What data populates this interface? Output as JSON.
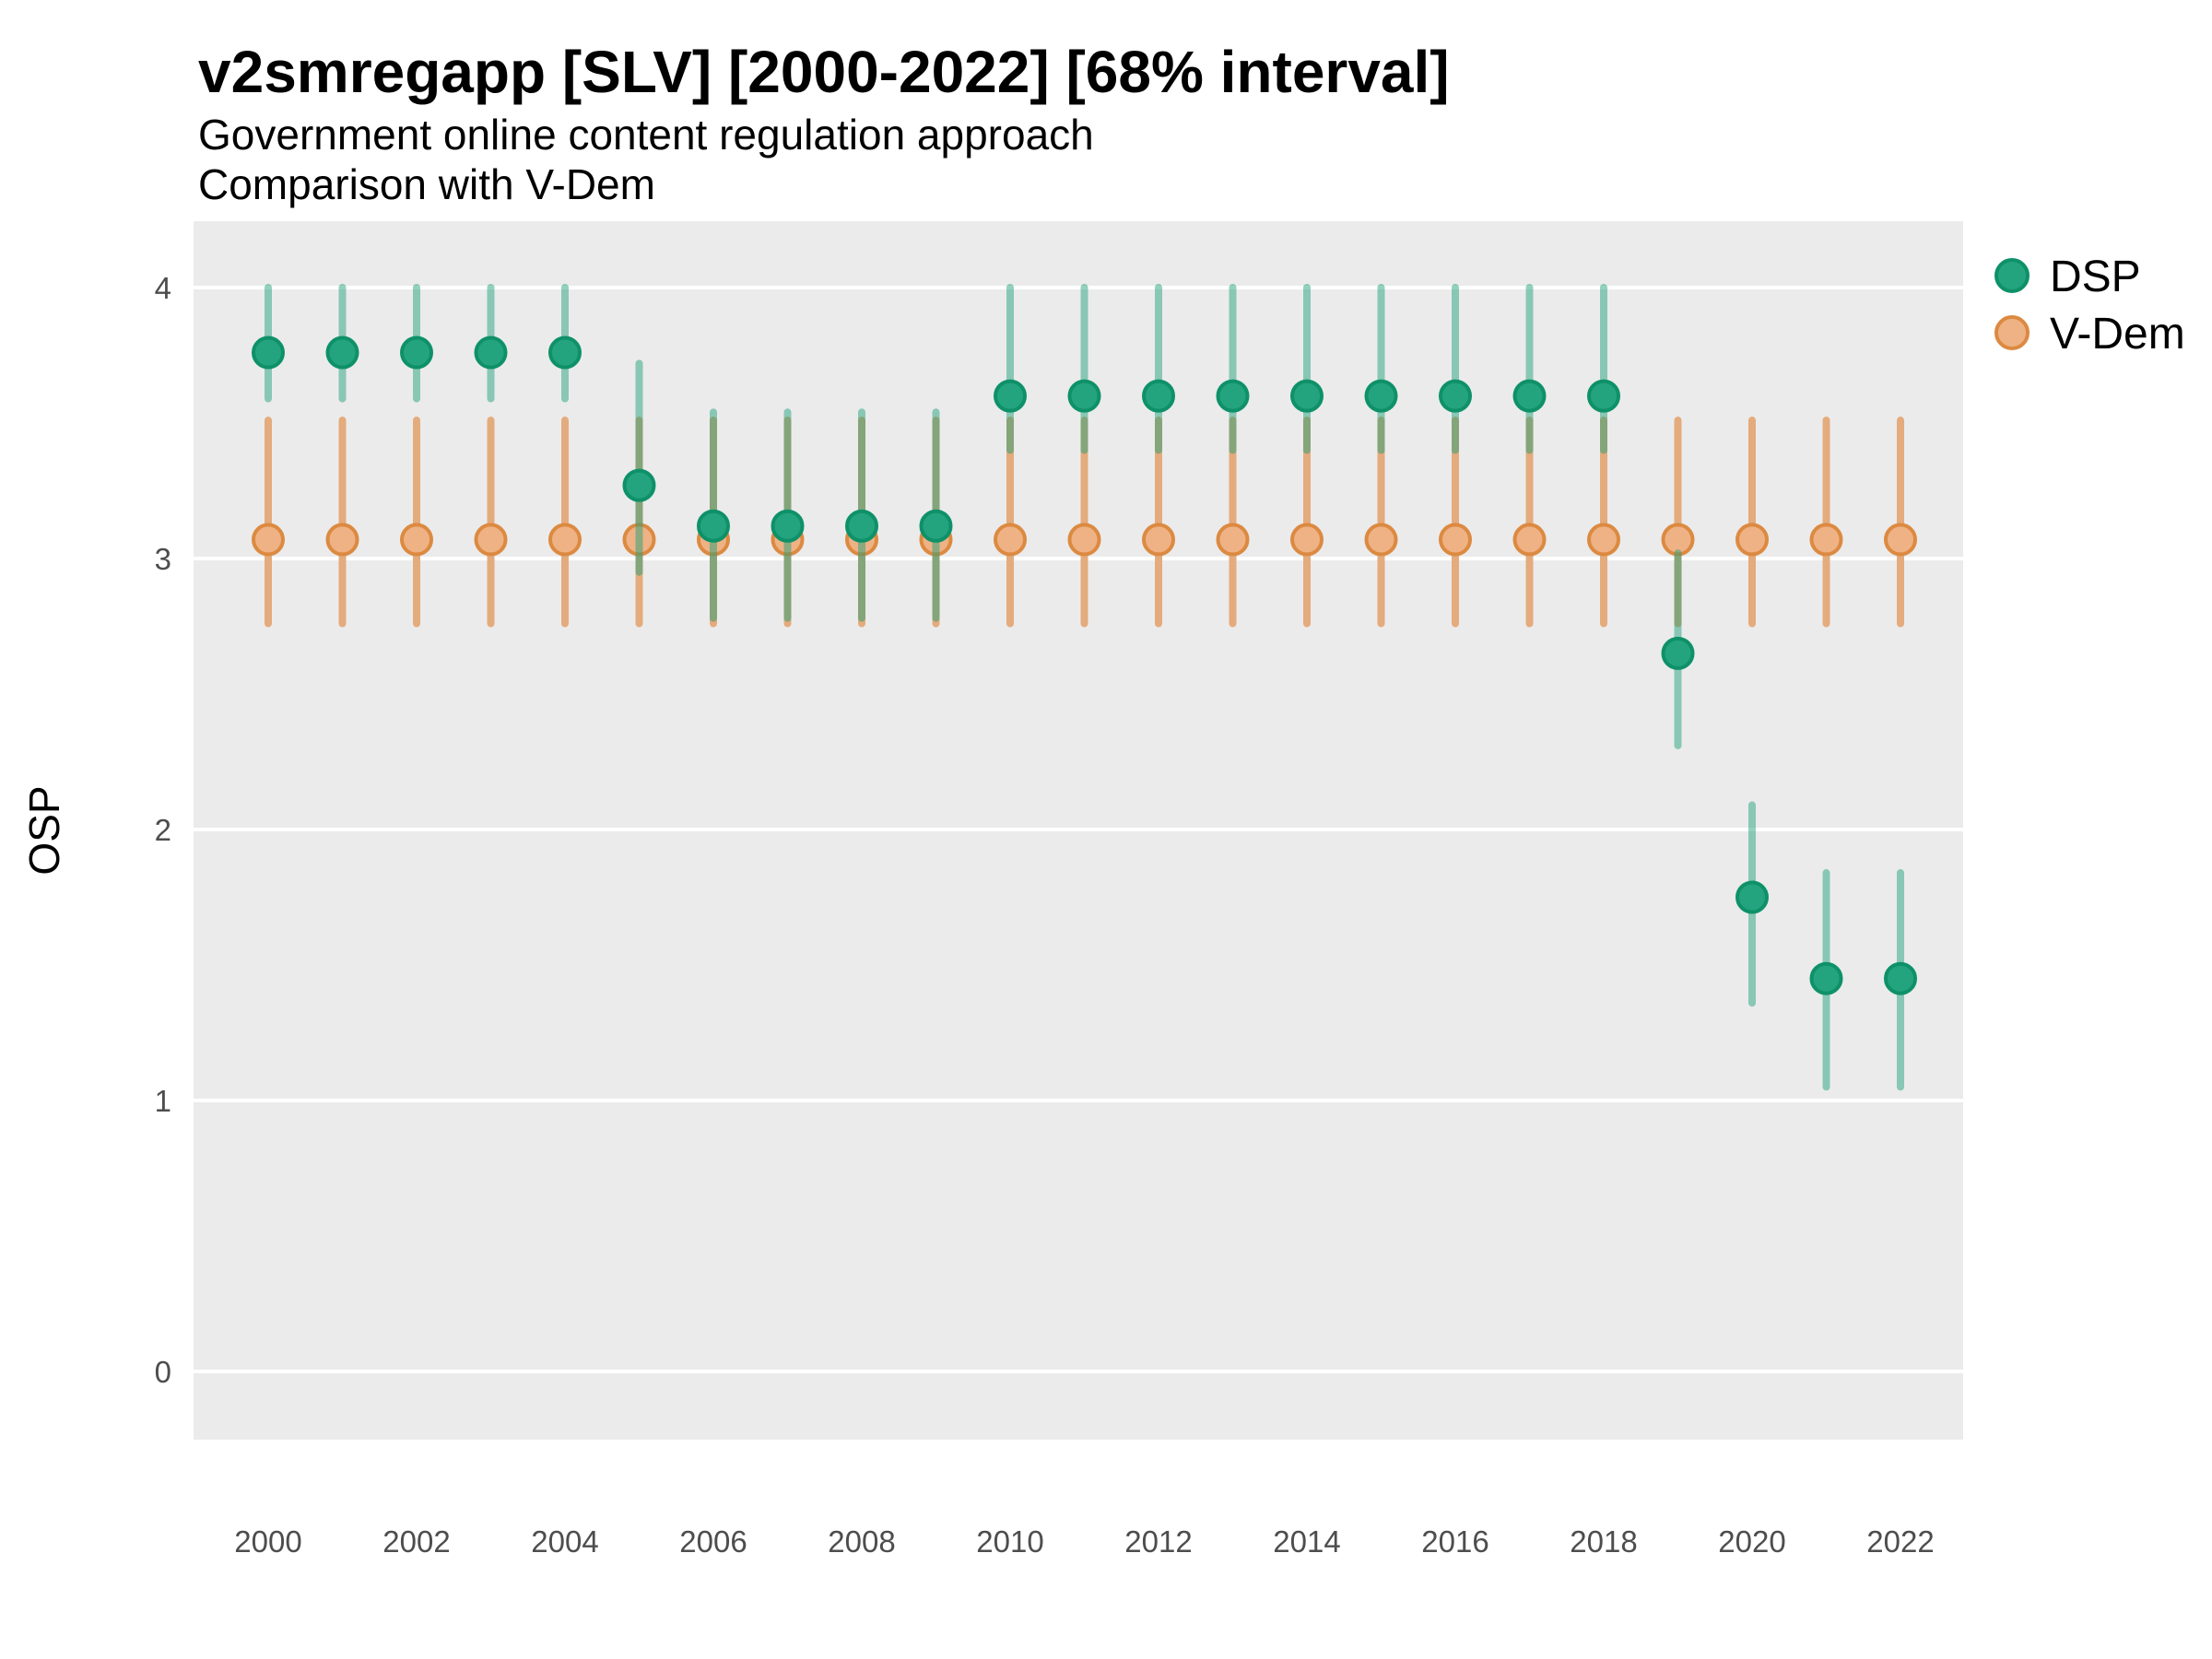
{
  "header": {
    "title": "v2smregapp [SLV] [2000-2022] [68% interval]",
    "subtitle_line1": "Government online content regulation approach",
    "subtitle_line2": "Comparison with V-Dem"
  },
  "legend": {
    "items": [
      {
        "label": "DSP"
      },
      {
        "label": "V-Dem"
      }
    ]
  },
  "chart_data": {
    "type": "scatter",
    "title": "v2smregapp [SLV] [2000-2022] [68% interval]",
    "subtitle": "Government online content regulation approach\nComparison with V-Dem",
    "xlabel": "",
    "ylabel": "OSP",
    "ylim": [
      0,
      4
    ],
    "y_ticks": [
      0,
      1,
      2,
      3,
      4
    ],
    "x_ticks": [
      2000,
      2002,
      2004,
      2006,
      2008,
      2010,
      2012,
      2014,
      2016,
      2018,
      2020,
      2022
    ],
    "grid": "horizontal-major-only",
    "legend_position": "right",
    "interval_level": "68%",
    "style": {
      "panel_bg": "#EBEBEB",
      "grid_color": "#FFFFFF",
      "tick_label_color": "#4D4D4D",
      "text_color": "#000000"
    },
    "years": [
      2000,
      2001,
      2002,
      2003,
      2004,
      2005,
      2006,
      2007,
      2008,
      2009,
      2010,
      2011,
      2012,
      2013,
      2014,
      2015,
      2016,
      2017,
      2018,
      2019,
      2020,
      2021,
      2022
    ],
    "series": [
      {
        "name": "DSP",
        "point_fill": "#24A37F",
        "point_stroke": "#0E9168",
        "bar_color": "rgba(27,158,119,0.48)",
        "values": [
          3.76,
          3.76,
          3.76,
          3.76,
          3.76,
          3.27,
          3.12,
          3.12,
          3.12,
          3.12,
          3.6,
          3.6,
          3.6,
          3.6,
          3.6,
          3.6,
          3.6,
          3.6,
          3.6,
          2.65,
          1.75,
          1.45,
          1.45
        ],
        "lo": [
          3.59,
          3.59,
          3.59,
          3.59,
          3.59,
          2.95,
          2.78,
          2.78,
          2.78,
          2.78,
          3.4,
          3.4,
          3.4,
          3.4,
          3.4,
          3.4,
          3.4,
          3.4,
          3.4,
          2.31,
          1.36,
          1.05,
          1.05
        ],
        "hi": [
          4.0,
          4.0,
          4.0,
          4.0,
          4.0,
          3.72,
          3.54,
          3.54,
          3.54,
          3.54,
          4.0,
          4.0,
          4.0,
          4.0,
          4.0,
          4.0,
          4.0,
          4.0,
          4.0,
          3.02,
          2.09,
          1.84,
          1.84
        ]
      },
      {
        "name": "V-Dem",
        "point_fill": "#EFB285",
        "point_stroke": "#DC8A41",
        "bar_color": "#E4AB7D",
        "values": [
          3.07,
          3.07,
          3.07,
          3.07,
          3.07,
          3.07,
          3.07,
          3.07,
          3.07,
          3.07,
          3.07,
          3.07,
          3.07,
          3.07,
          3.07,
          3.07,
          3.07,
          3.07,
          3.07,
          3.07,
          3.07,
          3.07,
          3.07
        ],
        "lo": [
          2.76,
          2.76,
          2.76,
          2.76,
          2.76,
          2.76,
          2.76,
          2.76,
          2.76,
          2.76,
          2.76,
          2.76,
          2.76,
          2.76,
          2.76,
          2.76,
          2.76,
          2.76,
          2.76,
          2.76,
          2.76,
          2.76,
          2.76
        ],
        "hi": [
          3.51,
          3.51,
          3.51,
          3.51,
          3.51,
          3.51,
          3.51,
          3.51,
          3.51,
          3.51,
          3.51,
          3.51,
          3.51,
          3.51,
          3.51,
          3.51,
          3.51,
          3.51,
          3.51,
          3.51,
          3.51,
          3.51,
          3.51
        ]
      }
    ]
  }
}
